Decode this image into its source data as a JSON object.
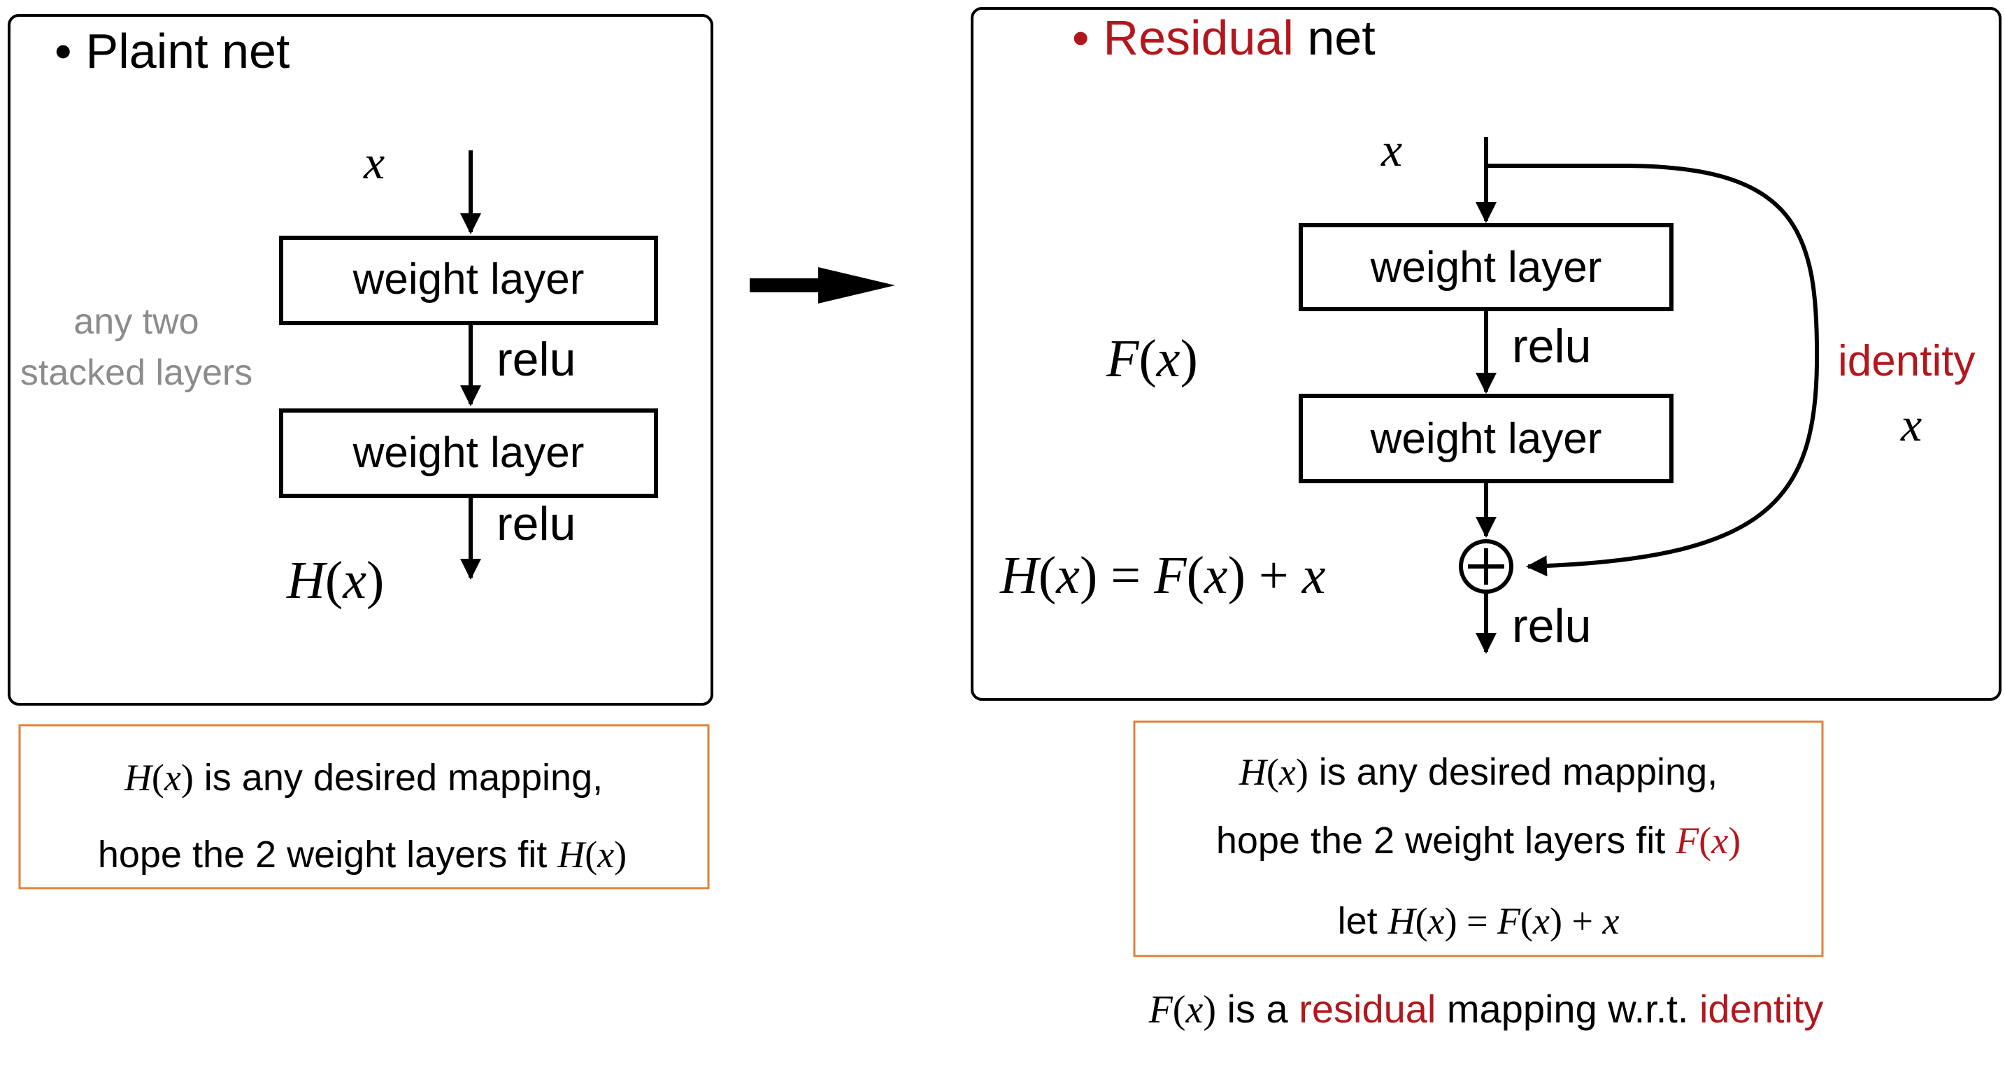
{
  "colors": {
    "text": "#000000",
    "accent_red": "#b3171e",
    "gray": "#8c8c8c",
    "caption_border": "#e0813a",
    "frame": "#000000"
  },
  "plain": {
    "bullet": "•",
    "title": "Plaint net",
    "input": "x",
    "layer1": "weight layer",
    "relu1": "relu",
    "layer2": "weight layer",
    "relu2": "relu",
    "output": {
      "f": "H",
      "lp": "(",
      "v": "x",
      "rp": ")"
    },
    "side_line1": "any two",
    "side_line2": "stacked layers",
    "caption": {
      "l1_f": "H",
      "l1_lp": "(",
      "l1_v": "x",
      "l1_rp": ")",
      "l1_text": " is any desired mapping,",
      "l2_text": "hope the 2 weight layers fit ",
      "l2_f": "H",
      "l2_lp": "(",
      "l2_v": "x",
      "l2_rp": ")"
    }
  },
  "residual": {
    "bullet": "•",
    "title_red": "Residual",
    "title_black": " net",
    "input": "x",
    "layer1": "weight layer",
    "relu1": "relu",
    "layer2": "weight layer",
    "relu_out": "relu",
    "fx": {
      "f": "F",
      "lp": "(",
      "v": "x",
      "rp": ")"
    },
    "identity_label": "identity",
    "identity_x": "x",
    "equation": {
      "h": "H",
      "lp1": "(",
      "x1": "x",
      "rp1": ")",
      "eq": " = ",
      "f": "F",
      "lp2": "(",
      "x2": "x",
      "rp2": ")",
      "plus": " + ",
      "x3": "x"
    },
    "caption": {
      "l1_f": "H",
      "l1_lp": "(",
      "l1_v": "x",
      "l1_rp": ")",
      "l1_text": " is any desired mapping,",
      "l2_text": "hope the 2 weight layers fit ",
      "l2_f": "F",
      "l2_lp": "(",
      "l2_v": "x",
      "l2_rp": ")",
      "l3_text": "let ",
      "l3_h": "H",
      "l3_lp1": "(",
      "l3_x1": "x",
      "l3_rp1": ")",
      "l3_eq": " = ",
      "l3_f": "F",
      "l3_lp2": "(",
      "l3_x2": "x",
      "l3_rp2": ")",
      "l3_plus": " + ",
      "l3_x3": "x"
    },
    "footnote": {
      "f": "F",
      "lp": "(",
      "v": "x",
      "rp": ")",
      "t1": " is a ",
      "red1": "residual",
      "t2": " mapping w.r.t. ",
      "red2": "identity"
    }
  }
}
